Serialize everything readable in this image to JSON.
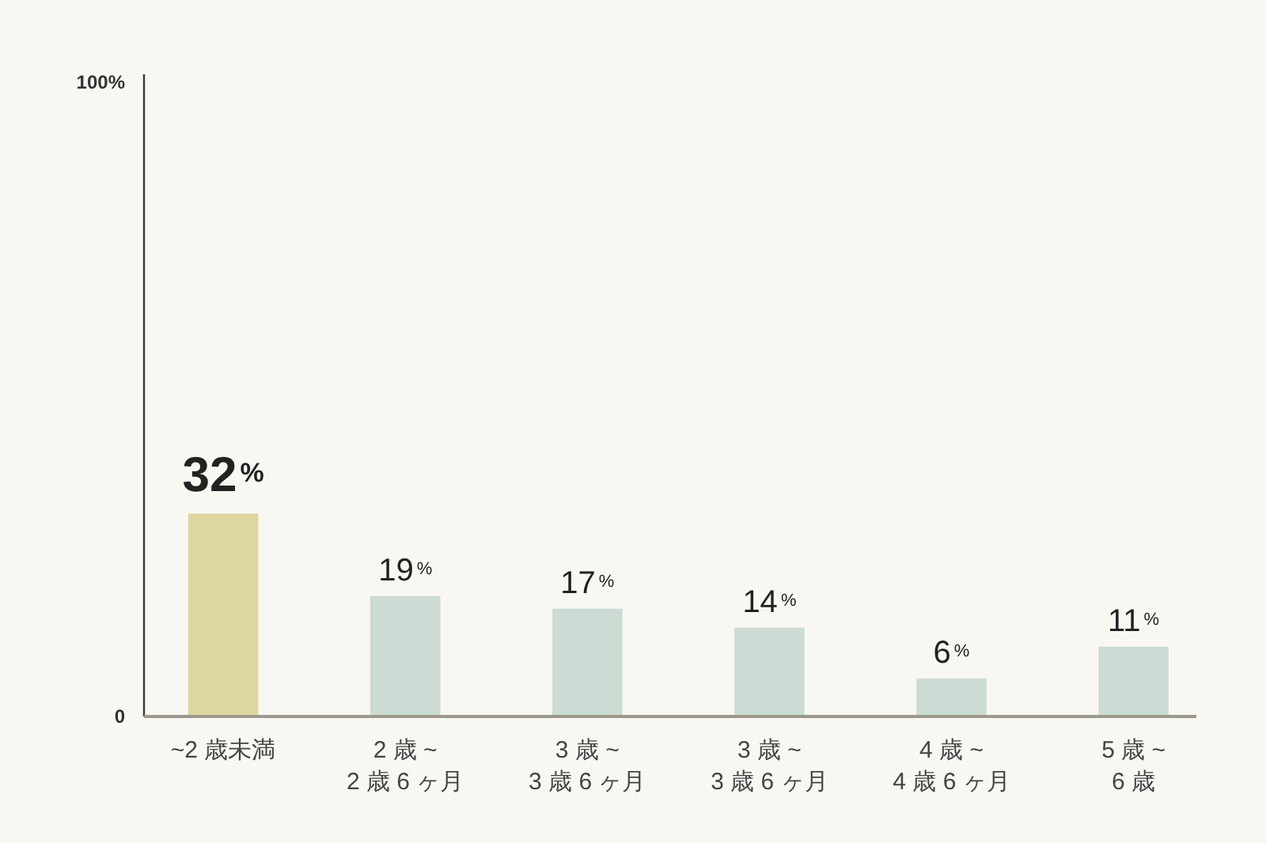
{
  "chart_data": {
    "type": "bar",
    "categories": [
      "~2 歳未満",
      "2 歳 ~\n2 歳 6 ヶ月",
      "3 歳 ~\n3 歳 6 ヶ月",
      "3 歳 ~\n3 歳 6 ヶ月",
      "4 歳 ~\n4 歳 6 ヶ月",
      "5 歳 ~\n6 歳"
    ],
    "values": [
      32,
      19,
      17,
      14,
      6,
      11
    ],
    "colors": [
      "#ddd6a0",
      "#ccdbd3",
      "#ccdbd3",
      "#ccdbd3",
      "#ccdbd3",
      "#ccdbd3"
    ],
    "value_labels": [
      "32$^{%}$",
      "19$^{%}$",
      "17$^{%}$",
      "14$^{%}$",
      "6$^{%}$",
      "11$^{%}$"
    ],
    "ylim": [
      0,
      100
    ],
    "yticks": [
      0,
      {
        "value": 100,
        "label": "100%"
      }
    ]
  }
}
